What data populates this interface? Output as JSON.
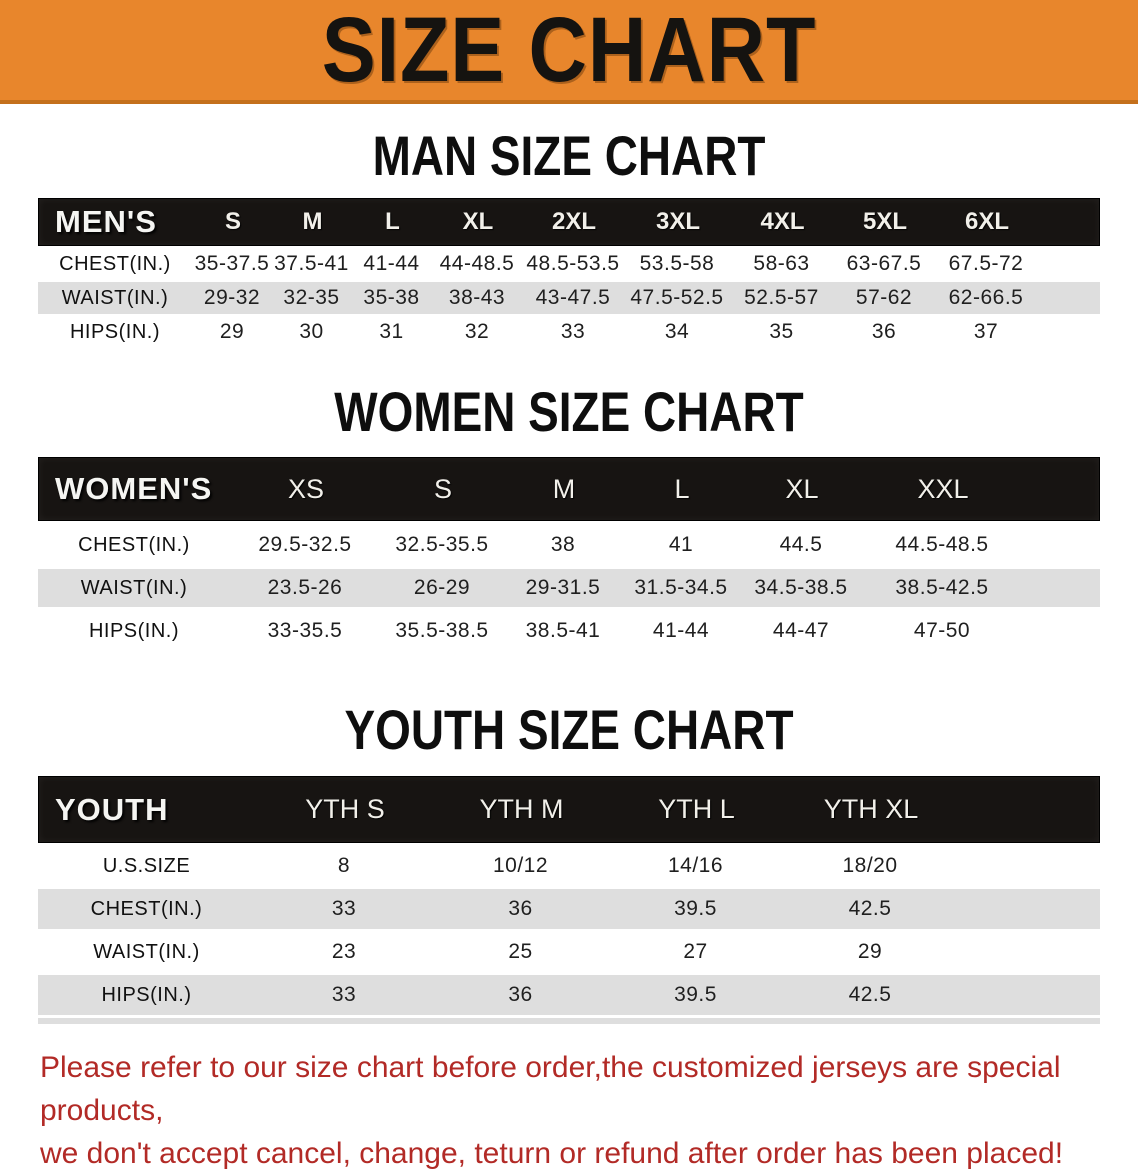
{
  "banner": {
    "title": "SIZE CHART"
  },
  "sections": {
    "men": {
      "heading": "MAN SIZE CHART",
      "label": "MEN'S",
      "columns": [
        "S",
        "M",
        "L",
        "XL",
        "2XL",
        "3XL",
        "4XL",
        "5XL",
        "6XL"
      ],
      "rows": [
        {
          "label": "CHEST(IN.)",
          "values": [
            "35-37.5",
            "37.5-41",
            "41-44",
            "44-48.5",
            "48.5-53.5",
            "53.5-58",
            "58-63",
            "63-67.5",
            "67.5-72"
          ]
        },
        {
          "label": "WAIST(IN.)",
          "values": [
            "29-32",
            "32-35",
            "35-38",
            "38-43",
            "43-47.5",
            "47.5-52.5",
            "52.5-57",
            "57-62",
            "62-66.5"
          ]
        },
        {
          "label": "HIPS(IN.)",
          "values": [
            "29",
            "30",
            "31",
            "32",
            "33",
            "34",
            "35",
            "36",
            "37"
          ]
        }
      ]
    },
    "women": {
      "heading": "WOMEN SIZE CHART",
      "label": "WOMEN'S",
      "columns": [
        "XS",
        "S",
        "M",
        "L",
        "XL",
        "XXL"
      ],
      "rows": [
        {
          "label": "CHEST(IN.)",
          "values": [
            "29.5-32.5",
            "32.5-35.5",
            "38",
            "41",
            "44.5",
            "44.5-48.5"
          ]
        },
        {
          "label": "WAIST(IN.)",
          "values": [
            "23.5-26",
            "26-29",
            "29-31.5",
            "31.5-34.5",
            "34.5-38.5",
            "38.5-42.5"
          ]
        },
        {
          "label": "HIPS(IN.)",
          "values": [
            "33-35.5",
            "35.5-38.5",
            "38.5-41",
            "41-44",
            "44-47",
            "47-50"
          ]
        }
      ]
    },
    "youth": {
      "heading": "YOUTH SIZE CHART",
      "label": "YOUTH",
      "columns": [
        "YTH S",
        "YTH M",
        "YTH L",
        "YTH XL"
      ],
      "rows": [
        {
          "label": "U.S.SIZE",
          "values": [
            "8",
            "10/12",
            "14/16",
            "18/20"
          ]
        },
        {
          "label": "CHEST(IN.)",
          "values": [
            "33",
            "36",
            "39.5",
            "42.5"
          ]
        },
        {
          "label": "WAIST(IN.)",
          "values": [
            "23",
            "25",
            "27",
            "29"
          ]
        },
        {
          "label": "HIPS(IN.)",
          "values": [
            "33",
            "36",
            "39.5",
            "42.5"
          ]
        }
      ]
    }
  },
  "footer": {
    "line1": "Please refer to our size chart before order,the customized jerseys are special products,",
    "line2": "we don't accept cancel, change, teturn or refund after order has been placed!"
  },
  "colors": {
    "banner_orange": "#E8862C",
    "banner_edge": "#C4701C",
    "header_band": "#171412",
    "row_gray": "#DEDEDE",
    "row_white": "#FFFFFF",
    "footer_red": "#B22A26",
    "heading_black": "#0E0E0E"
  }
}
